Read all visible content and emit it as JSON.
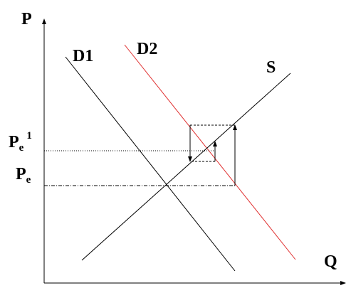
{
  "axes": {
    "y": "P",
    "x": "Q"
  },
  "curves": {
    "d1": "D1",
    "d2": "D2",
    "s": "S"
  },
  "price_labels": [
    {
      "symbol": "P",
      "subscript": "e",
      "superscript": "1"
    },
    {
      "symbol": "P",
      "subscript": "e"
    }
  ]
}
